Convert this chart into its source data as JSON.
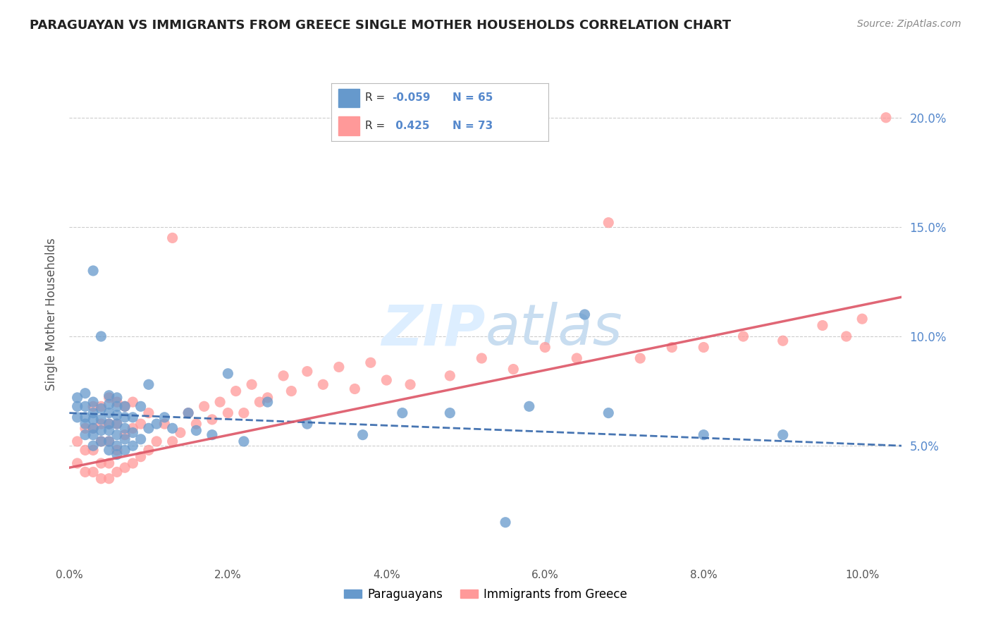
{
  "title": "PARAGUAYAN VS IMMIGRANTS FROM GREECE SINGLE MOTHER HOUSEHOLDS CORRELATION CHART",
  "source": "Source: ZipAtlas.com",
  "ylabel": "Single Mother Households",
  "xlim": [
    0.0,
    0.105
  ],
  "ylim": [
    -0.005,
    0.225
  ],
  "xticks": [
    0.0,
    0.02,
    0.04,
    0.06,
    0.08,
    0.1
  ],
  "xtick_labels": [
    "0.0%",
    "2.0%",
    "4.0%",
    "6.0%",
    "8.0%",
    "10.0%"
  ],
  "yticks": [
    0.05,
    0.1,
    0.15,
    0.2
  ],
  "ytick_labels": [
    "5.0%",
    "10.0%",
    "15.0%",
    "20.0%"
  ],
  "legend_blue_label": "Paraguayans",
  "legend_pink_label": "Immigrants from Greece",
  "R_blue": -0.059,
  "N_blue": 65,
  "R_pink": 0.425,
  "N_pink": 73,
  "blue_color": "#6699cc",
  "pink_color": "#ff9999",
  "blue_line_color": "#3366aa",
  "pink_line_color": "#dd5566",
  "watermark_color": "#ddeeff",
  "grid_color": "#cccccc",
  "blue_scatter_x": [
    0.001,
    0.001,
    0.001,
    0.002,
    0.002,
    0.002,
    0.002,
    0.002,
    0.003,
    0.003,
    0.003,
    0.003,
    0.003,
    0.003,
    0.003,
    0.004,
    0.004,
    0.004,
    0.004,
    0.004,
    0.005,
    0.005,
    0.005,
    0.005,
    0.005,
    0.005,
    0.005,
    0.006,
    0.006,
    0.006,
    0.006,
    0.006,
    0.006,
    0.006,
    0.007,
    0.007,
    0.007,
    0.007,
    0.007,
    0.008,
    0.008,
    0.008,
    0.009,
    0.009,
    0.01,
    0.01,
    0.011,
    0.012,
    0.013,
    0.015,
    0.016,
    0.018,
    0.02,
    0.022,
    0.025,
    0.03,
    0.037,
    0.042,
    0.048,
    0.055,
    0.058,
    0.065,
    0.068,
    0.08,
    0.09
  ],
  "blue_scatter_y": [
    0.063,
    0.068,
    0.072,
    0.055,
    0.06,
    0.063,
    0.068,
    0.074,
    0.05,
    0.055,
    0.058,
    0.062,
    0.065,
    0.07,
    0.13,
    0.052,
    0.057,
    0.062,
    0.067,
    0.1,
    0.048,
    0.052,
    0.057,
    0.06,
    0.065,
    0.069,
    0.073,
    0.046,
    0.05,
    0.055,
    0.06,
    0.064,
    0.068,
    0.072,
    0.048,
    0.053,
    0.058,
    0.063,
    0.068,
    0.05,
    0.056,
    0.063,
    0.053,
    0.068,
    0.058,
    0.078,
    0.06,
    0.063,
    0.058,
    0.065,
    0.057,
    0.055,
    0.083,
    0.052,
    0.07,
    0.06,
    0.055,
    0.065,
    0.065,
    0.015,
    0.068,
    0.11,
    0.065,
    0.055,
    0.055
  ],
  "pink_scatter_x": [
    0.001,
    0.001,
    0.002,
    0.002,
    0.002,
    0.003,
    0.003,
    0.003,
    0.003,
    0.004,
    0.004,
    0.004,
    0.004,
    0.004,
    0.005,
    0.005,
    0.005,
    0.005,
    0.005,
    0.006,
    0.006,
    0.006,
    0.006,
    0.007,
    0.007,
    0.007,
    0.008,
    0.008,
    0.008,
    0.009,
    0.009,
    0.01,
    0.01,
    0.011,
    0.012,
    0.013,
    0.013,
    0.014,
    0.015,
    0.016,
    0.017,
    0.018,
    0.019,
    0.02,
    0.021,
    0.022,
    0.023,
    0.024,
    0.025,
    0.027,
    0.028,
    0.03,
    0.032,
    0.034,
    0.036,
    0.038,
    0.04,
    0.043,
    0.048,
    0.052,
    0.056,
    0.06,
    0.064,
    0.068,
    0.072,
    0.076,
    0.08,
    0.085,
    0.09,
    0.095,
    0.098,
    0.1,
    0.103
  ],
  "pink_scatter_y": [
    0.042,
    0.052,
    0.038,
    0.048,
    0.058,
    0.038,
    0.048,
    0.058,
    0.068,
    0.035,
    0.042,
    0.052,
    0.06,
    0.068,
    0.035,
    0.042,
    0.052,
    0.06,
    0.072,
    0.038,
    0.048,
    0.06,
    0.07,
    0.04,
    0.055,
    0.068,
    0.042,
    0.058,
    0.07,
    0.045,
    0.06,
    0.048,
    0.065,
    0.052,
    0.06,
    0.145,
    0.052,
    0.056,
    0.065,
    0.06,
    0.068,
    0.062,
    0.07,
    0.065,
    0.075,
    0.065,
    0.078,
    0.07,
    0.072,
    0.082,
    0.075,
    0.084,
    0.078,
    0.086,
    0.076,
    0.088,
    0.08,
    0.078,
    0.082,
    0.09,
    0.085,
    0.095,
    0.09,
    0.152,
    0.09,
    0.095,
    0.095,
    0.1,
    0.098,
    0.105,
    0.1,
    0.108,
    0.2
  ]
}
